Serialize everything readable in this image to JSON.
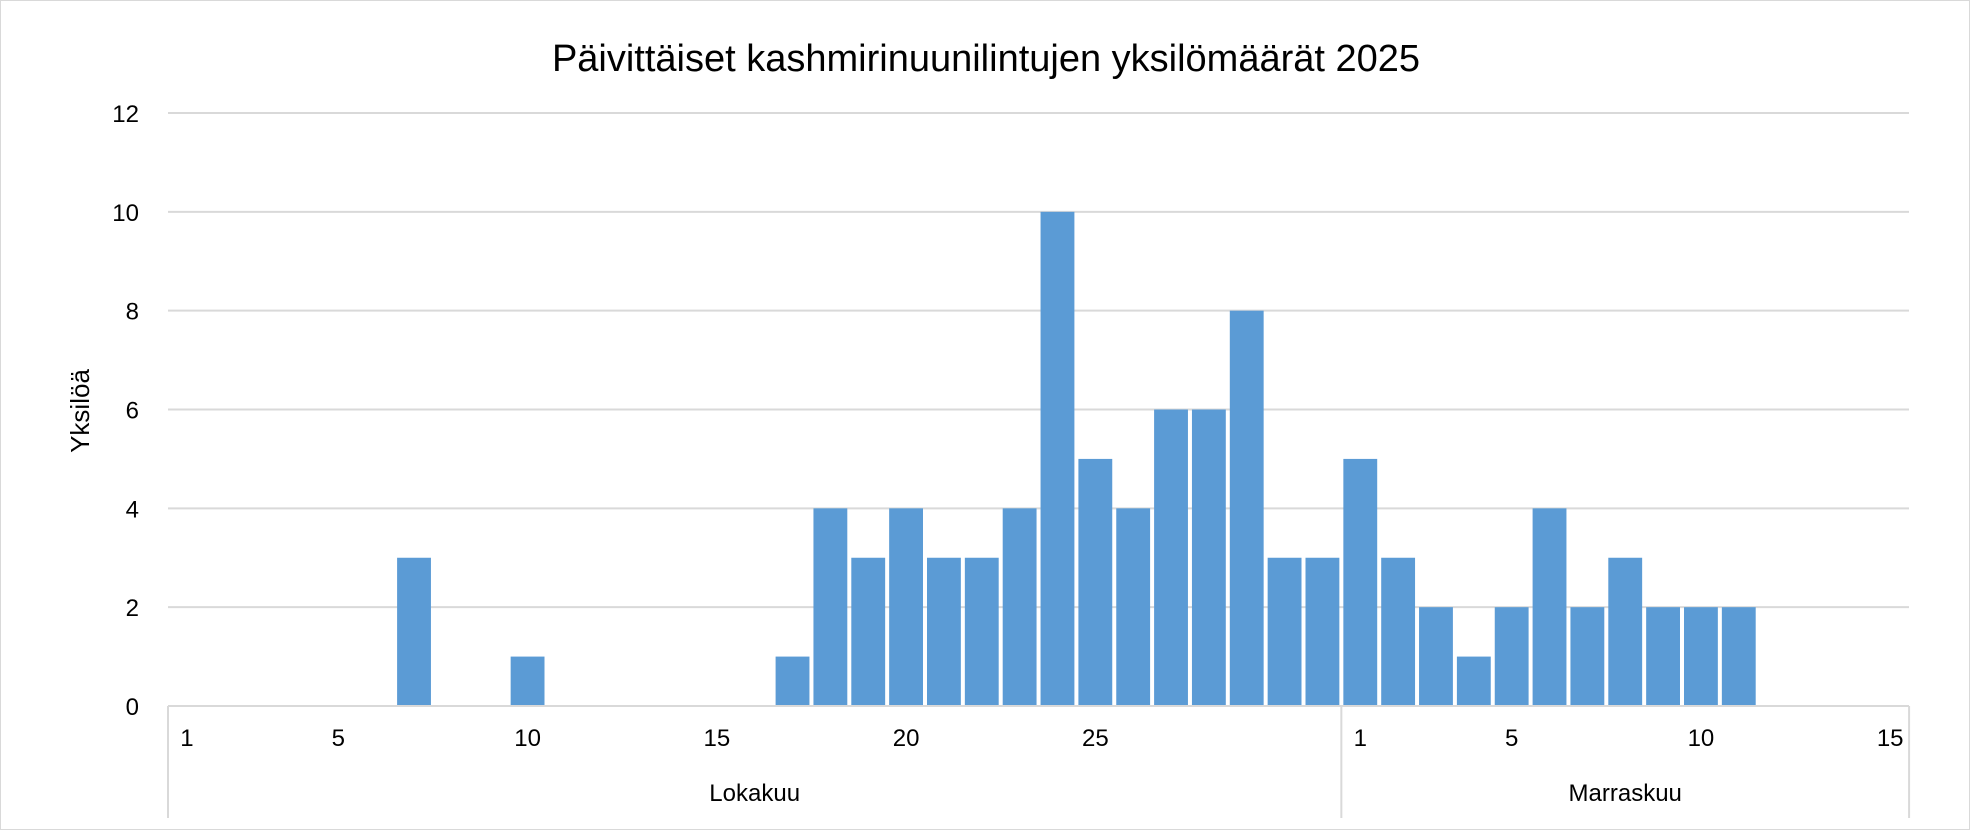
{
  "chart_data": {
    "type": "bar",
    "title": "Päivittäiset kashmirinuunilintujen yksilömäärät 2025",
    "xlabel": "",
    "ylabel": "Yksilöä",
    "ylim": [
      0,
      12
    ],
    "y_ticks": [
      0,
      2,
      4,
      6,
      8,
      10,
      12
    ],
    "grid": true,
    "legend": "none",
    "bar_color": "#5b9bd5",
    "grid_color": "#d9d9d9",
    "axis_color": "#d9d9d9",
    "groups": [
      {
        "label": "Lokakuu",
        "days": 31,
        "tick_labels": [
          1,
          5,
          10,
          15,
          20,
          25
        ]
      },
      {
        "label": "Marraskuu",
        "days": 15,
        "tick_labels": [
          1,
          5,
          10,
          15
        ]
      }
    ],
    "series": [
      {
        "data": [
          {
            "month": "Lokakuu",
            "day": 7,
            "value": 3
          },
          {
            "month": "Lokakuu",
            "day": 10,
            "value": 1
          },
          {
            "month": "Lokakuu",
            "day": 17,
            "value": 1
          },
          {
            "month": "Lokakuu",
            "day": 18,
            "value": 4
          },
          {
            "month": "Lokakuu",
            "day": 19,
            "value": 3
          },
          {
            "month": "Lokakuu",
            "day": 20,
            "value": 4
          },
          {
            "month": "Lokakuu",
            "day": 21,
            "value": 3
          },
          {
            "month": "Lokakuu",
            "day": 22,
            "value": 3
          },
          {
            "month": "Lokakuu",
            "day": 23,
            "value": 4
          },
          {
            "month": "Lokakuu",
            "day": 24,
            "value": 10
          },
          {
            "month": "Lokakuu",
            "day": 25,
            "value": 5
          },
          {
            "month": "Lokakuu",
            "day": 26,
            "value": 4
          },
          {
            "month": "Lokakuu",
            "day": 27,
            "value": 6
          },
          {
            "month": "Lokakuu",
            "day": 28,
            "value": 6
          },
          {
            "month": "Lokakuu",
            "day": 29,
            "value": 8
          },
          {
            "month": "Lokakuu",
            "day": 30,
            "value": 3
          },
          {
            "month": "Lokakuu",
            "day": 31,
            "value": 3
          },
          {
            "month": "Marraskuu",
            "day": 1,
            "value": 5
          },
          {
            "month": "Marraskuu",
            "day": 2,
            "value": 3
          },
          {
            "month": "Marraskuu",
            "day": 3,
            "value": 2
          },
          {
            "month": "Marraskuu",
            "day": 4,
            "value": 1
          },
          {
            "month": "Marraskuu",
            "day": 5,
            "value": 2
          },
          {
            "month": "Marraskuu",
            "day": 6,
            "value": 4
          },
          {
            "month": "Marraskuu",
            "day": 7,
            "value": 2
          },
          {
            "month": "Marraskuu",
            "day": 8,
            "value": 3
          },
          {
            "month": "Marraskuu",
            "day": 9,
            "value": 2
          },
          {
            "month": "Marraskuu",
            "day": 10,
            "value": 2
          },
          {
            "month": "Marraskuu",
            "day": 11,
            "value": 2
          }
        ]
      }
    ]
  }
}
